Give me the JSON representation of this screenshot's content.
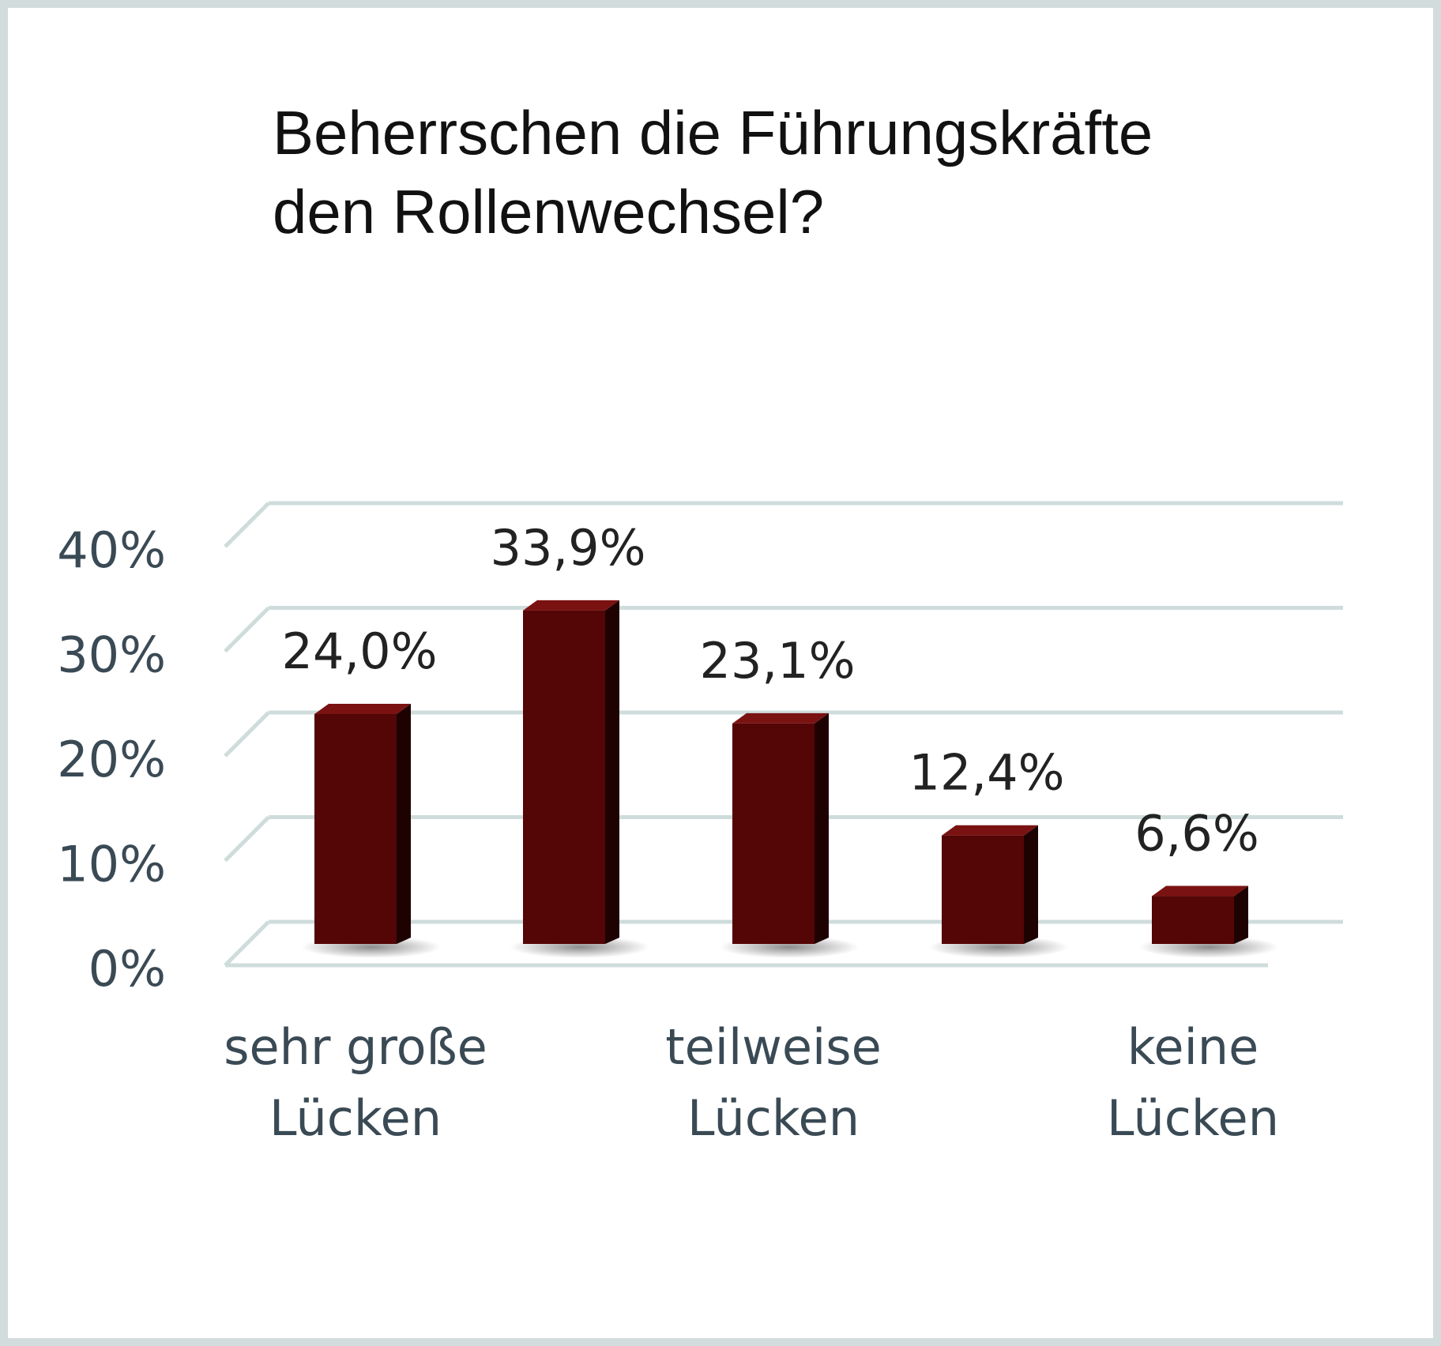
{
  "chart_data": {
    "type": "bar",
    "title_lines": [
      "Beherrschen die Führungskräfte",
      "den Rollenwechsel?"
    ],
    "xlabel": "",
    "ylabel": "",
    "categories": [
      [
        "sehr große",
        "Lücken"
      ],
      [],
      [
        "teilweise",
        "Lücken"
      ],
      [],
      [
        "keine",
        "Lücken"
      ]
    ],
    "values": [
      24.0,
      33.9,
      23.1,
      12.4,
      6.6
    ],
    "data_labels": [
      "24,0%",
      "33,9%",
      "23,1%",
      "12,4%",
      "6,6%"
    ],
    "ylim": [
      0,
      40
    ],
    "yticks": [
      0,
      10,
      20,
      30,
      40
    ],
    "ytick_labels": [
      "0%",
      "10%",
      "20%",
      "30%",
      "40%"
    ],
    "grid": true,
    "legend": "none",
    "style": "3d-columns",
    "colors": {
      "bar_front": "#540505",
      "bar_side": "#1e0202",
      "bar_top": "#7a1212",
      "grid": "#cfdcdc",
      "axis_text": "#3a4a55",
      "data_label_text": "#222222",
      "frame": "#d3dcdc"
    }
  }
}
